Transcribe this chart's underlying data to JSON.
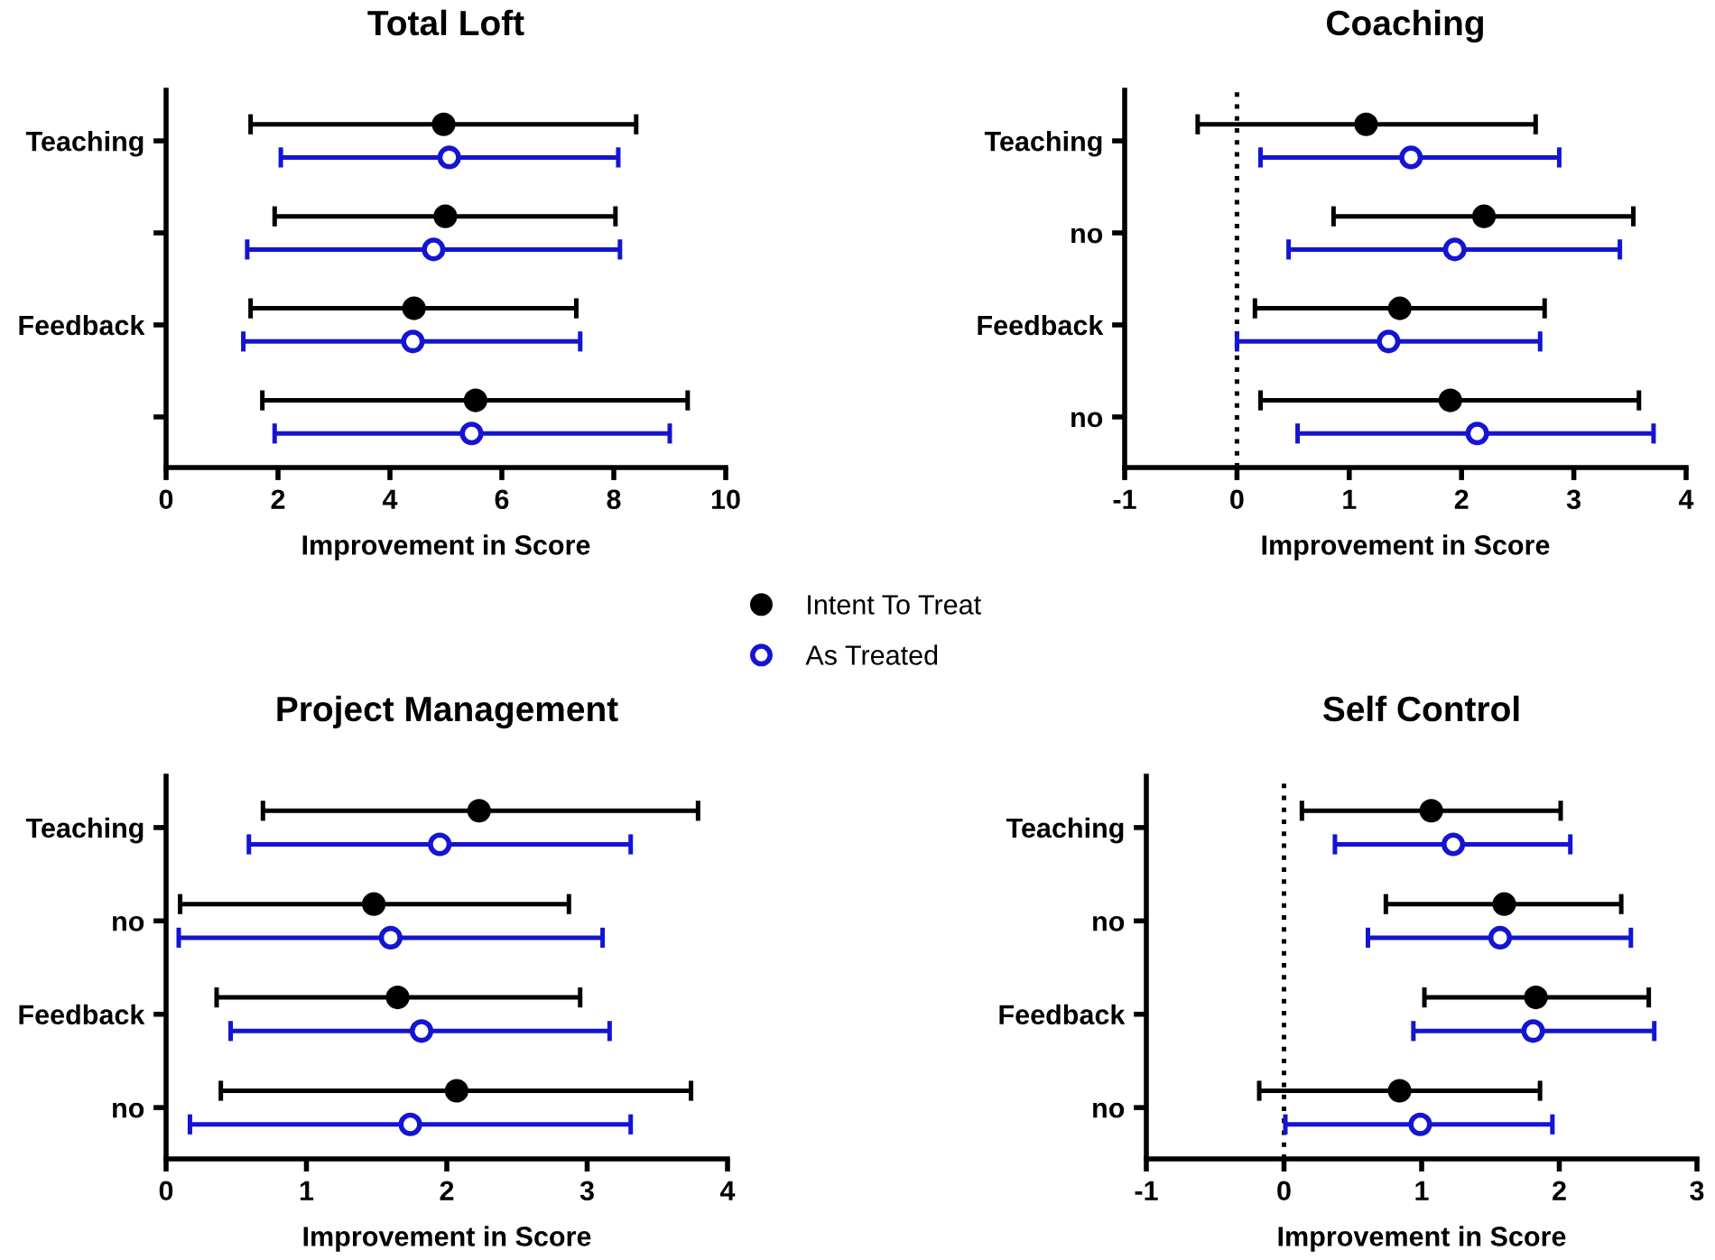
{
  "chart_data": [
    {
      "type": "scatter",
      "orientation": "horizontal",
      "title": "Total Loft",
      "xlabel": "Improvement in Score",
      "categories": [
        "Teaching",
        null,
        "Feedback",
        null
      ],
      "xlim": [
        0,
        10
      ],
      "xticks": [
        0,
        2,
        4,
        6,
        8,
        10
      ],
      "marker": "circle",
      "legend": "bottom right",
      "grid": false,
      "series": [
        {
          "name": "Intent To Treat",
          "color": "#000000",
          "values": [
            4.96,
            4.99,
            4.43,
            5.53
          ],
          "errors": [
            [
              1.51,
              8.4
            ],
            [
              1.94,
              8.03
            ],
            [
              1.51,
              7.33
            ],
            [
              1.72,
              9.32
            ]
          ]
        },
        {
          "name": "As Treated",
          "color": "#1414d2",
          "values": [
            5.06,
            4.78,
            4.41,
            5.46
          ],
          "errors": [
            [
              2.05,
              8.08
            ],
            [
              1.45,
              8.11
            ],
            [
              1.38,
              7.4
            ],
            [
              1.94,
              9.0
            ]
          ]
        }
      ]
    },
    {
      "type": "scatter",
      "orientation": "horizontal",
      "title": "Coaching",
      "xlabel": "Improvement in Score",
      "categories": [
        "Teaching",
        "no",
        "Feedback",
        "no"
      ],
      "xlim": [
        -1,
        4
      ],
      "xticks": [
        -1,
        0,
        1,
        2,
        3,
        4
      ],
      "marker": "circle",
      "grid": false,
      "ref_lines": [
        {
          "axis": "x",
          "value": 0,
          "color": "#000000",
          "line_style": "dotted"
        }
      ],
      "series": [
        {
          "color": "#000000",
          "values": [
            1.15,
            2.2,
            1.45,
            1.9
          ],
          "errors": [
            [
              -0.35,
              2.66
            ],
            [
              0.86,
              3.53
            ],
            [
              0.16,
              2.74
            ],
            [
              0.21,
              3.58
            ]
          ]
        },
        {
          "color": "#1414d2",
          "values": [
            1.55,
            1.94,
            1.35,
            2.14
          ],
          "errors": [
            [
              0.21,
              2.87
            ],
            [
              0.46,
              3.41
            ],
            [
              0.0,
              2.7
            ],
            [
              0.54,
              3.71
            ]
          ]
        }
      ]
    },
    {
      "type": "scatter",
      "orientation": "horizontal",
      "title": "Project Management",
      "xlabel": "Improvement in Score",
      "categories": [
        "Teaching",
        "no",
        "Feedback",
        "no"
      ],
      "xlim": [
        0,
        4
      ],
      "xticks": [
        0,
        1,
        2,
        3,
        4
      ],
      "marker": "circle",
      "grid": false,
      "series": [
        {
          "color": "#000000",
          "values": [
            2.23,
            1.48,
            1.65,
            2.07
          ],
          "errors": [
            [
              0.69,
              3.79
            ],
            [
              0.1,
              2.87
            ],
            [
              0.36,
              2.95
            ],
            [
              0.39,
              3.74
            ]
          ]
        },
        {
          "color": "#1414d2",
          "values": [
            1.95,
            1.6,
            1.82,
            1.74
          ],
          "errors": [
            [
              0.59,
              3.31
            ],
            [
              0.09,
              3.11
            ],
            [
              0.46,
              3.16
            ],
            [
              0.17,
              3.31
            ]
          ]
        }
      ]
    },
    {
      "type": "scatter",
      "orientation": "horizontal",
      "title": "Self Control",
      "xlabel": "Improvement in Score",
      "categories": [
        "Teaching",
        "no",
        "Feedback",
        "no"
      ],
      "xlim": [
        -1,
        3
      ],
      "xticks": [
        -1,
        0,
        1,
        2,
        3
      ],
      "marker": "circle",
      "grid": false,
      "ref_lines": [
        {
          "axis": "x",
          "value": 0,
          "color": "#000000",
          "line_style": "dotted"
        }
      ],
      "series": [
        {
          "color": "#000000",
          "values": [
            1.07,
            1.6,
            1.83,
            0.84
          ],
          "errors": [
            [
              0.13,
              2.01
            ],
            [
              0.74,
              2.45
            ],
            [
              1.02,
              2.65
            ],
            [
              -0.18,
              1.86
            ]
          ]
        },
        {
          "color": "#1414d2",
          "values": [
            1.23,
            1.57,
            1.81,
            0.99
          ],
          "errors": [
            [
              0.37,
              2.08
            ],
            [
              0.61,
              2.52
            ],
            [
              0.94,
              2.69
            ],
            [
              0.01,
              1.95
            ]
          ]
        }
      ]
    }
  ]
}
